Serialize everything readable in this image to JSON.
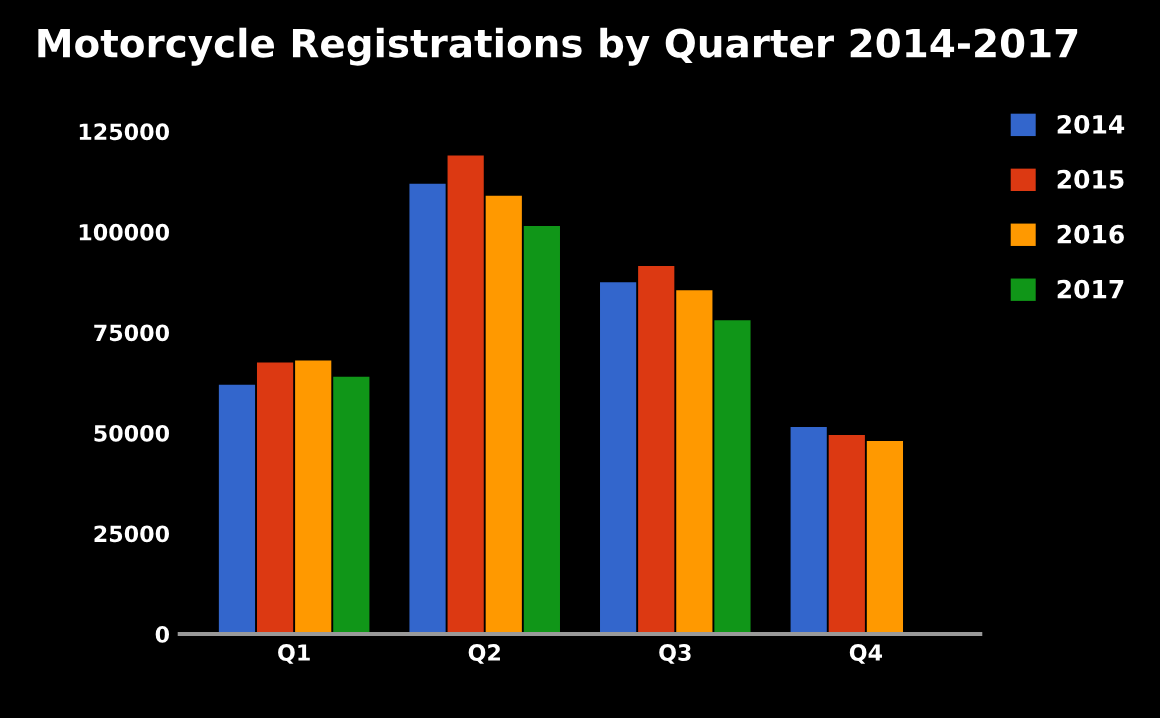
{
  "chart_data": {
    "type": "bar",
    "title": "Motorcycle Registrations by Quarter 2014-2017",
    "categories": [
      "Q1",
      "Q2",
      "Q3",
      "Q4"
    ],
    "series": [
      {
        "name": "2014",
        "color": "#3366cc",
        "values": [
          62000,
          112000,
          87500,
          51500
        ]
      },
      {
        "name": "2015",
        "color": "#dc3912",
        "values": [
          67500,
          119000,
          91500,
          49500
        ]
      },
      {
        "name": "2016",
        "color": "#ff9900",
        "values": [
          68000,
          109000,
          85500,
          48000
        ]
      },
      {
        "name": "2017",
        "color": "#109618",
        "values": [
          64000,
          101500,
          78000,
          null
        ]
      }
    ],
    "ylim": [
      0,
      125000
    ],
    "yticks": [
      0,
      25000,
      50000,
      75000,
      100000,
      125000
    ],
    "grid": false,
    "legend": "right"
  }
}
